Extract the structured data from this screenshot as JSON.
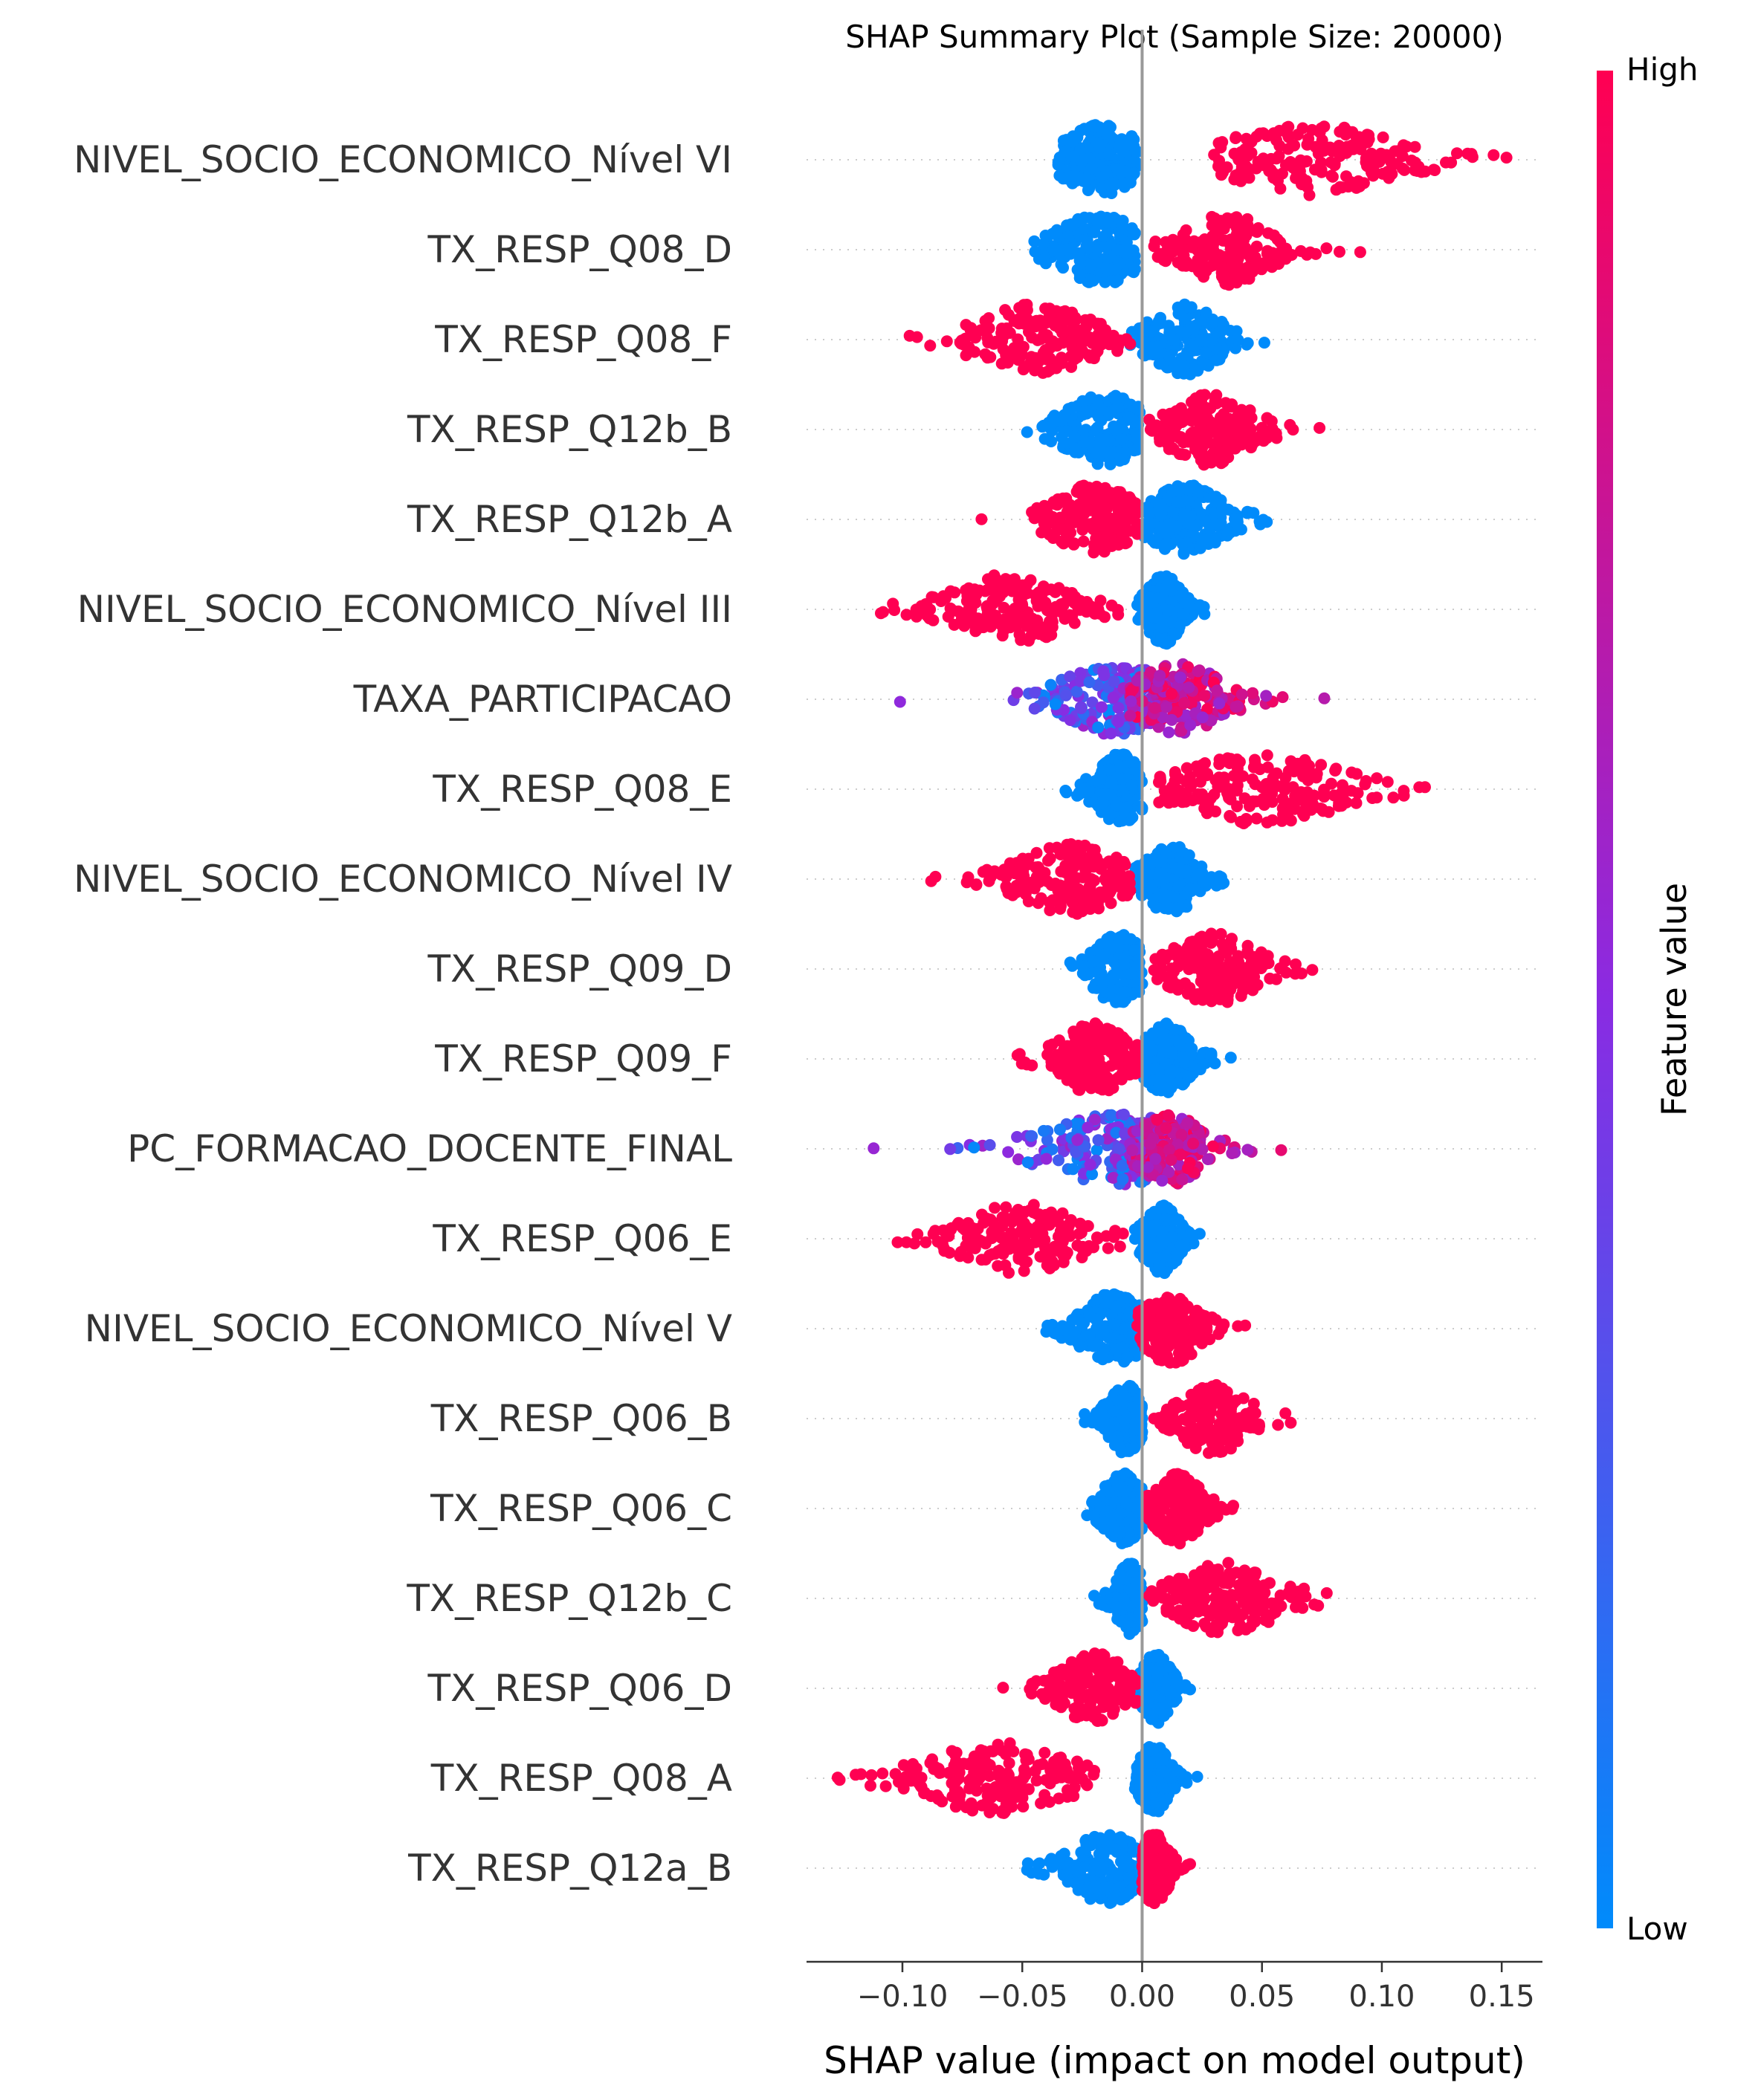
{
  "chart_data": {
    "type": "scatter",
    "title": "SHAP Summary Plot (Sample Size: 20000)",
    "xlabel": "SHAP value (impact on model output)",
    "xlim": [
      -0.14,
      0.167
    ],
    "xticks": [
      -0.1,
      -0.05,
      0.0,
      0.05,
      0.1,
      0.15
    ],
    "xtick_labels": [
      "−0.10",
      "−0.05",
      "0.00",
      "0.05",
      "0.10",
      "0.15"
    ],
    "colorbar": {
      "title": "Feature value",
      "high_label": "High",
      "low_label": "Low",
      "high_color": "#ff0052",
      "low_color": "#008bfb"
    },
    "features": [
      {
        "name": "NIVEL_SOCIO_ECONOMICO_Nível VI",
        "low": {
          "center": -0.017,
          "min": -0.035,
          "max": -0.002,
          "width": 0.013
        },
        "high": {
          "center": 0.07,
          "min": 0.03,
          "max": 0.152,
          "width": 0.03
        },
        "mixed": false
      },
      {
        "name": "TX_RESP_Q08_D",
        "low": {
          "center": -0.018,
          "min": -0.045,
          "max": -0.003,
          "width": 0.015
        },
        "high": {
          "center": 0.035,
          "min": 0.005,
          "max": 0.091,
          "width": 0.015
        },
        "mixed": false
      },
      {
        "name": "TX_RESP_Q08_F",
        "low": {
          "center": 0.018,
          "min": -0.005,
          "max": 0.051,
          "width": 0.012
        },
        "high": {
          "center": -0.045,
          "min": -0.097,
          "max": -0.005,
          "width": 0.02
        },
        "mixed": false
      },
      {
        "name": "TX_RESP_Q12b_B",
        "low": {
          "center": -0.015,
          "min": -0.048,
          "max": -0.001,
          "width": 0.014
        },
        "high": {
          "center": 0.028,
          "min": 0.003,
          "max": 0.074,
          "width": 0.014
        },
        "mixed": false
      },
      {
        "name": "TX_RESP_Q12b_A",
        "low": {
          "center": 0.018,
          "min": -0.002,
          "max": 0.052,
          "width": 0.013
        },
        "high": {
          "center": -0.02,
          "min": -0.067,
          "max": -0.002,
          "width": 0.014
        },
        "mixed": false
      },
      {
        "name": "NIVEL_SOCIO_ECONOMICO_Nível III",
        "low": {
          "center": 0.009,
          "min": -0.002,
          "max": 0.026,
          "width": 0.006
        },
        "high": {
          "center": -0.055,
          "min": -0.109,
          "max": -0.01,
          "width": 0.02
        },
        "mixed": false
      },
      {
        "name": "TAXA_PARTICIPACAO",
        "low": {
          "center": -0.01,
          "min": -0.101,
          "max": 0.005,
          "width": 0.02
        },
        "high": {
          "center": 0.015,
          "min": -0.005,
          "max": 0.076,
          "width": 0.015
        },
        "mixed": true
      },
      {
        "name": "TX_RESP_Q08_E",
        "low": {
          "center": -0.009,
          "min": -0.032,
          "max": 0.0,
          "width": 0.008
        },
        "high": {
          "center": 0.05,
          "min": 0.007,
          "max": 0.118,
          "width": 0.028
        },
        "mixed": false
      },
      {
        "name": "NIVEL_SOCIO_ECONOMICO_Nível IV",
        "low": {
          "center": 0.012,
          "min": -0.003,
          "max": 0.034,
          "width": 0.009
        },
        "high": {
          "center": -0.03,
          "min": -0.088,
          "max": -0.005,
          "width": 0.018
        },
        "mixed": false
      },
      {
        "name": "TX_RESP_Q09_D",
        "low": {
          "center": -0.01,
          "min": -0.03,
          "max": 0.0,
          "width": 0.009
        },
        "high": {
          "center": 0.03,
          "min": 0.005,
          "max": 0.071,
          "width": 0.015
        },
        "mixed": false
      },
      {
        "name": "TX_RESP_Q09_F",
        "low": {
          "center": 0.01,
          "min": -0.002,
          "max": 0.037,
          "width": 0.008
        },
        "high": {
          "center": -0.02,
          "min": -0.052,
          "max": -0.002,
          "width": 0.012
        },
        "mixed": false
      },
      {
        "name": "PC_FORMACAO_DOCENTE_FINAL",
        "low": {
          "center": -0.01,
          "min": -0.112,
          "max": 0.005,
          "width": 0.025
        },
        "high": {
          "center": 0.012,
          "min": -0.005,
          "max": 0.058,
          "width": 0.012
        },
        "mixed": true
      },
      {
        "name": "TX_RESP_Q06_E",
        "low": {
          "center": 0.008,
          "min": -0.003,
          "max": 0.024,
          "width": 0.006
        },
        "high": {
          "center": -0.05,
          "min": -0.102,
          "max": -0.008,
          "width": 0.02
        },
        "mixed": false
      },
      {
        "name": "NIVEL_SOCIO_ECONOMICO_Nível V",
        "low": {
          "center": -0.012,
          "min": -0.04,
          "max": 0.0,
          "width": 0.012
        },
        "high": {
          "center": 0.012,
          "min": -0.002,
          "max": 0.043,
          "width": 0.01
        },
        "mixed": false
      },
      {
        "name": "TX_RESP_Q06_B",
        "low": {
          "center": -0.007,
          "min": -0.024,
          "max": 0.0,
          "width": 0.006
        },
        "high": {
          "center": 0.03,
          "min": 0.005,
          "max": 0.062,
          "width": 0.012
        },
        "mixed": false
      },
      {
        "name": "TX_RESP_Q06_C",
        "low": {
          "center": -0.008,
          "min": -0.023,
          "max": 0.0,
          "width": 0.007
        },
        "high": {
          "center": 0.015,
          "min": 0.002,
          "max": 0.038,
          "width": 0.008
        },
        "mixed": false
      },
      {
        "name": "TX_RESP_Q12b_C",
        "low": {
          "center": -0.005,
          "min": -0.02,
          "max": 0.0,
          "width": 0.005
        },
        "high": {
          "center": 0.035,
          "min": 0.003,
          "max": 0.077,
          "width": 0.018
        },
        "mixed": false
      },
      {
        "name": "TX_RESP_Q06_D",
        "low": {
          "center": 0.006,
          "min": -0.001,
          "max": 0.02,
          "width": 0.005
        },
        "high": {
          "center": -0.02,
          "min": -0.058,
          "max": -0.002,
          "width": 0.012
        },
        "mixed": false
      },
      {
        "name": "TX_RESP_Q08_A",
        "low": {
          "center": 0.005,
          "min": -0.003,
          "max": 0.023,
          "width": 0.005
        },
        "high": {
          "center": -0.06,
          "min": -0.127,
          "max": -0.02,
          "width": 0.025
        },
        "mixed": false
      },
      {
        "name": "TX_RESP_Q12a_B",
        "low": {
          "center": -0.015,
          "min": -0.048,
          "max": 0.0,
          "width": 0.012
        },
        "high": {
          "center": 0.005,
          "min": 0.0,
          "max": 0.02,
          "width": 0.005
        },
        "mixed": false
      }
    ]
  }
}
